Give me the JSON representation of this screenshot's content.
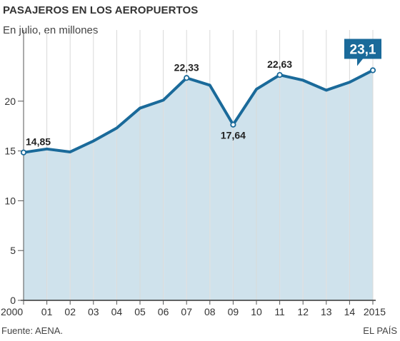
{
  "title": "PASAJEROS EN LOS AEROPUERTOS",
  "subtitle": "En julio, en millones",
  "source": "Fuente: AENA.",
  "credit": "EL PAÍS",
  "colors": {
    "line": "#1a6a9a",
    "fill": "#cfe2ec",
    "axis": "#333333",
    "highlight": "#1a6a9a"
  },
  "chart_data": {
    "type": "area",
    "title": "PASAJEROS EN LOS AEROPUERTOS",
    "subtitle": "En julio, en millones",
    "xlabel": "",
    "ylabel": "",
    "categories": [
      "2000",
      "01",
      "02",
      "03",
      "04",
      "05",
      "06",
      "07",
      "08",
      "09",
      "10",
      "11",
      "12",
      "13",
      "14",
      "2015"
    ],
    "values": [
      14.85,
      15.2,
      14.9,
      16.0,
      17.3,
      19.3,
      20.1,
      22.33,
      21.6,
      17.64,
      21.2,
      22.63,
      22.1,
      21.1,
      21.9,
      23.1
    ],
    "ylim": [
      0,
      25
    ],
    "yticks": [
      0,
      5,
      10,
      15,
      20
    ],
    "grid": "vertical",
    "annotations": [
      {
        "index": 0,
        "label": "14,85",
        "pos": "above"
      },
      {
        "index": 7,
        "label": "22,33",
        "pos": "above"
      },
      {
        "index": 9,
        "label": "17,64",
        "pos": "below"
      },
      {
        "index": 11,
        "label": "22,63",
        "pos": "above"
      }
    ],
    "highlight": {
      "index": 15,
      "label": "23,1"
    }
  }
}
